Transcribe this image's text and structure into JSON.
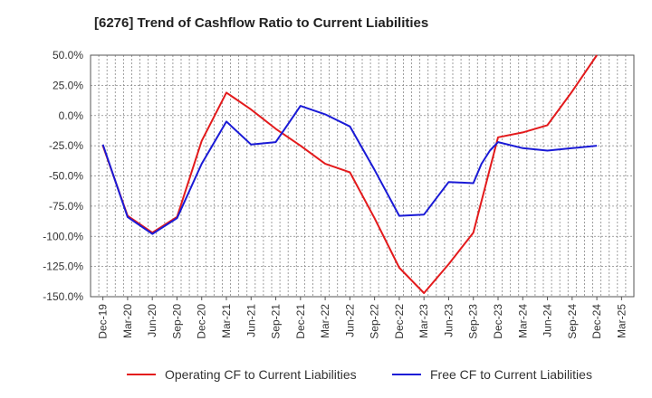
{
  "chart_data": {
    "type": "line",
    "title": "[6276]  Trend of Cashflow Ratio to Current Liabilities",
    "xlabel": "",
    "ylabel": "",
    "ylim": [
      -150,
      50
    ],
    "y_ticks": [
      "50.0%",
      "25.0%",
      "0.0%",
      "-25.0%",
      "-50.0%",
      "-75.0%",
      "-100.0%",
      "-125.0%",
      "-150.0%"
    ],
    "y_tick_values": [
      50,
      25,
      0,
      -25,
      -50,
      -75,
      -100,
      -125,
      -150
    ],
    "x_ticks": [
      "Dec-19",
      "Mar-20",
      "Jun-20",
      "Sep-20",
      "Dec-20",
      "Mar-21",
      "Jun-21",
      "Sep-21",
      "Dec-21",
      "Mar-22",
      "Jun-22",
      "Sep-22",
      "Dec-22",
      "Mar-23",
      "Jun-23",
      "Sep-23",
      "Dec-23",
      "Mar-24",
      "Jun-24",
      "Sep-24",
      "Dec-24",
      "Mar-25"
    ],
    "grid": true,
    "legend_position": "bottom",
    "series": [
      {
        "name": "Operating CF to Current Liabilities",
        "color": "#e31a1c",
        "x": [
          0,
          1,
          2,
          3,
          4,
          5,
          6,
          7,
          8,
          9,
          10,
          11,
          12,
          13,
          14,
          15,
          16,
          17,
          18,
          19,
          20
        ],
        "values": [
          -25,
          -83,
          -97,
          -84,
          -21,
          19,
          5,
          -11,
          -25,
          -40,
          -47,
          -85,
          -126,
          -147,
          -123,
          -97,
          -18,
          -14,
          -8,
          20,
          50
        ]
      },
      {
        "name": "Free CF to Current Liabilities",
        "color": "#1a1ad6",
        "x": [
          0,
          1,
          2,
          3,
          4,
          5,
          6,
          7,
          8,
          9,
          10,
          11,
          12,
          13,
          14,
          15,
          15.33,
          15.67,
          16,
          17,
          18,
          19,
          20
        ],
        "values": [
          -24,
          -84,
          -98,
          -85,
          -40,
          -5,
          -24,
          -22,
          8,
          1,
          -9,
          -45,
          -83,
          -82,
          -55,
          -56,
          -40,
          -29,
          -22,
          -27,
          -29,
          -27,
          -25
        ]
      }
    ]
  }
}
